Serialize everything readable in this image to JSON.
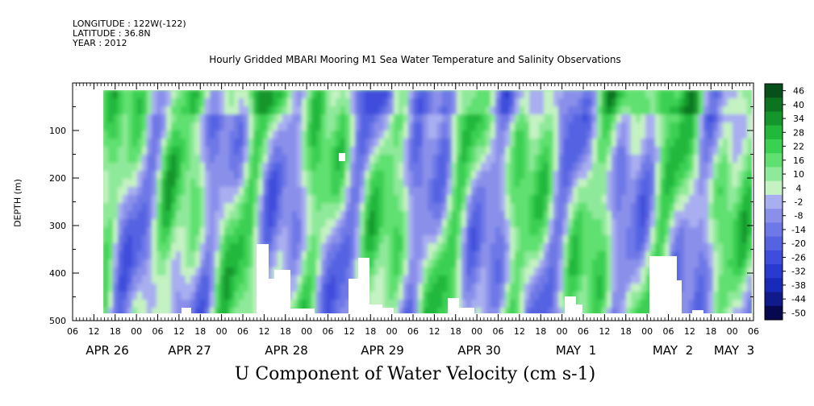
{
  "header": {
    "longitude": "LONGITUDE : 122W(-122)",
    "latitude": "LATITUDE : 36.8N",
    "year": "YEAR : 2012"
  },
  "chart_data": {
    "type": "heatmap",
    "title": "Hourly Gridded MBARI Mooring M1 Sea Water Temperature and Salinity Observations",
    "xlabel": "U Component of Water Velocity (cm s-1)",
    "ylabel": "DEPTH (m)",
    "ylim": [
      500,
      0
    ],
    "y_ticks": [
      100,
      200,
      300,
      400,
      500
    ],
    "x_hour_ticks": [
      "06",
      "12",
      "18",
      "00",
      "06",
      "12",
      "18",
      "00",
      "06",
      "12",
      "18",
      "00",
      "06",
      "12",
      "18",
      "00",
      "06",
      "12",
      "18",
      "00",
      "06",
      "12",
      "18",
      "00",
      "06",
      "12",
      "18",
      "00",
      "06",
      "12",
      "18",
      "00",
      "06"
    ],
    "x_day_labels": [
      "APR 26",
      "APR 27",
      "APR 28",
      "APR 29",
      "APR 30",
      "MAY  1",
      "MAY  2",
      "MAY  3"
    ],
    "colorbar": {
      "levels": [
        46,
        40,
        34,
        28,
        22,
        16,
        10,
        4,
        -2,
        -8,
        -14,
        -20,
        -26,
        -32,
        -38,
        -44,
        -50
      ]
    },
    "field_note": "U velocity field from ~14h APR 25 to ~06h MAY 3, depths ~20-490 m; values mostly between -20 and 40 cm s-1"
  },
  "colors": {
    "strong_positive": "#0d6f1c",
    "positive": "#2fd24a",
    "weak_positive": "#9ef0a4",
    "weak_negative": "#b4b8f2",
    "negative": "#8a8ae8",
    "strong_negative": "#2a32c8"
  }
}
